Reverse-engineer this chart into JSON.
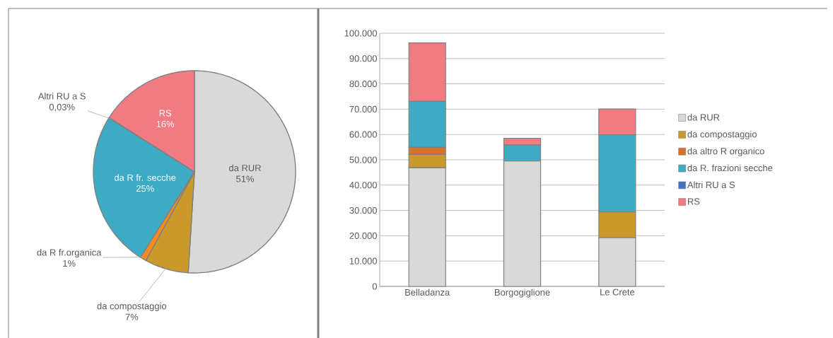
{
  "chart_data": [
    {
      "type": "pie",
      "categories": [
        "da RUR",
        "da compostaggio",
        "da R fr.organica",
        "da R fr. secche",
        "Altri RU a S",
        "RS"
      ],
      "values": [
        51,
        7,
        1,
        25,
        0.03,
        16
      ],
      "value_labels": [
        "51%",
        "7%",
        "1%",
        "25%",
        "0,03%",
        "16%"
      ],
      "colors": [
        "#d9d9d9",
        "#c9992b",
        "#f28c1e",
        "#3eabc5",
        "#4472c4",
        "#f27a82"
      ]
    },
    {
      "type": "bar",
      "stacked": true,
      "categories": [
        "Belladanza",
        "Borgogiglione",
        "Le Crete"
      ],
      "series": [
        {
          "name": "da RUR",
          "color": "#d9d9d9",
          "values": [
            46800,
            49500,
            19200
          ]
        },
        {
          "name": "da compostaggio",
          "color": "#c9992b",
          "values": [
            5300,
            0,
            10200
          ]
        },
        {
          "name": "da altro R organico",
          "color": "#d6722a",
          "values": [
            2800,
            0,
            0
          ]
        },
        {
          "name": "da R. frazioni secche",
          "color": "#3eabc5",
          "values": [
            18200,
            6300,
            30500
          ]
        },
        {
          "name": "Altri RU a S",
          "color": "#4472c4",
          "values": [
            0,
            0,
            0
          ]
        },
        {
          "name": "RS",
          "color": "#f27a82",
          "values": [
            23100,
            2700,
            10200
          ]
        }
      ],
      "ylim": [
        0,
        100000
      ],
      "yticks": [
        0,
        {
          "value": 10000,
          "label": "10.000"
        },
        {
          "value": 20000,
          "label": "20.000"
        },
        {
          "value": 30000,
          "label": "30.000"
        },
        {
          "value": 40000,
          "label": "40.000"
        },
        {
          "value": 50000,
          "label": "50.000"
        },
        {
          "value": 60000,
          "label": "60.000"
        },
        {
          "value": 70000,
          "label": "70.000"
        },
        {
          "value": 80000,
          "label": "80.000"
        },
        {
          "value": 90000,
          "label": "90.000"
        },
        {
          "value": 100000,
          "label": "100.000"
        }
      ],
      "grid": "y",
      "legend": "right"
    }
  ]
}
